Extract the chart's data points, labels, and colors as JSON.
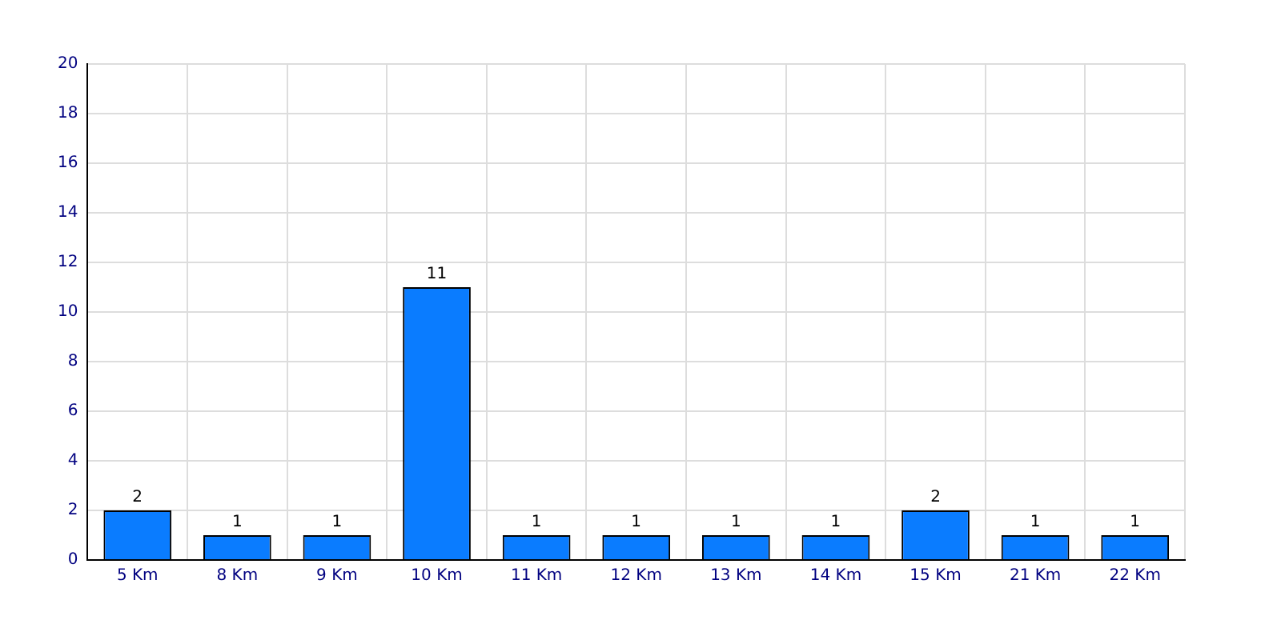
{
  "chart_data": {
    "type": "bar",
    "categories": [
      "5 Km",
      "8 Km",
      "9 Km",
      "10 Km",
      "11 Km",
      "12 Km",
      "13 Km",
      "14 Km",
      "15 Km",
      "21 Km",
      "22 Km"
    ],
    "values": [
      2,
      1,
      1,
      11,
      1,
      1,
      1,
      1,
      2,
      1,
      1
    ],
    "color": "#0a7cff",
    "ylim": [
      0,
      20
    ],
    "yticks": [
      0,
      2,
      4,
      6,
      8,
      10,
      12,
      14,
      16,
      18,
      20
    ],
    "grid": true,
    "data_labels": true,
    "legend": false
  }
}
